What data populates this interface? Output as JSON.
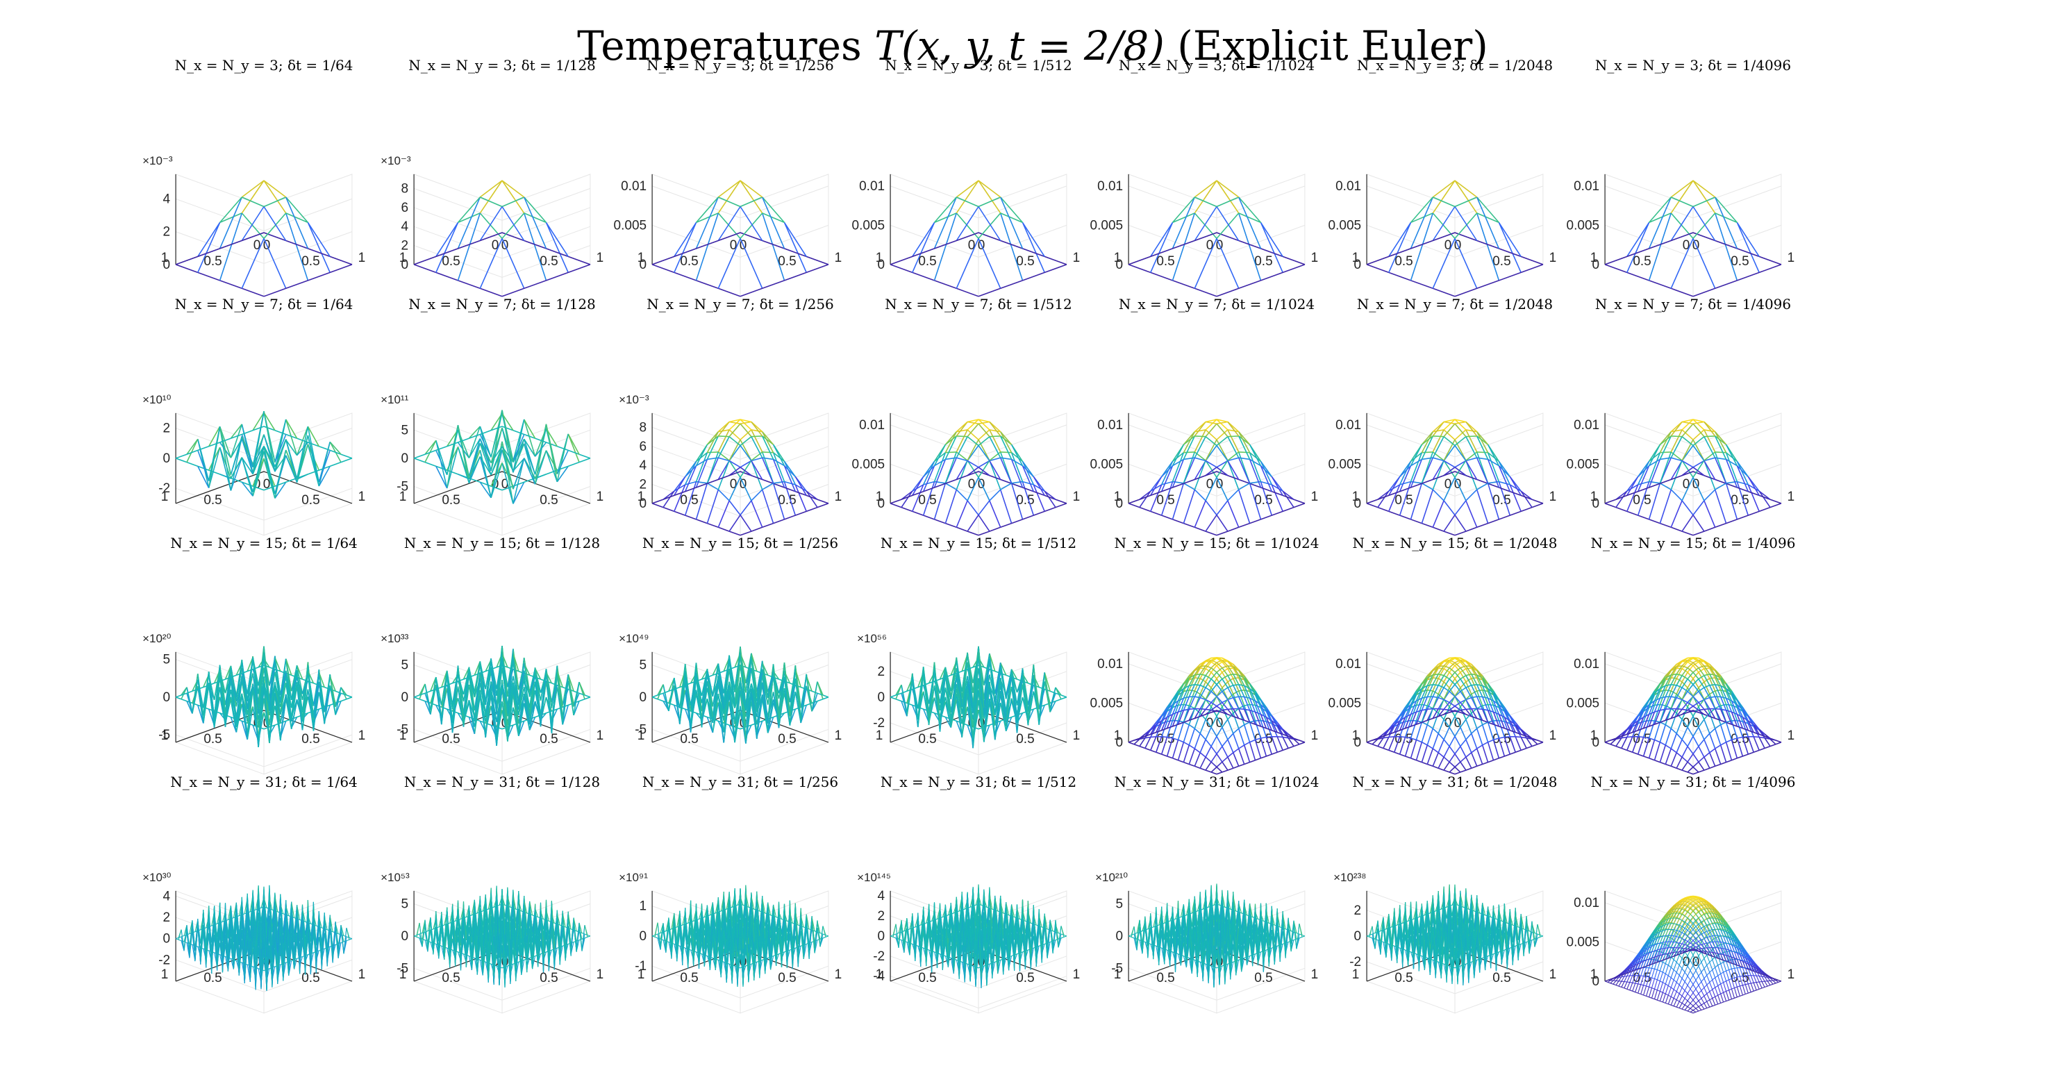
{
  "chart_data": {
    "type": "surface-grid",
    "title_prefix": "Temperatures ",
    "title_math": "T(x, y, t = 2/8)",
    "title_suffix": " (Explicit Euler)",
    "rows": 4,
    "cols": 7,
    "colormap": [
      "#3e26a8",
      "#4543e5",
      "#2f6ef8",
      "#1e97dc",
      "#16b8b5",
      "#5cc863",
      "#c2c02f",
      "#f9d824",
      "#f9fb14"
    ],
    "dt_labels": [
      "1/64",
      "1/128",
      "1/256",
      "1/512",
      "1/1024",
      "1/2048",
      "1/4096"
    ],
    "x_ticks": [
      "0",
      "0.5",
      "1"
    ],
    "y_ticks": [
      "0",
      "0.5",
      "1"
    ],
    "panels": [
      {
        "title": "N_x = N_y = 3; δt = 1/64",
        "N": 3,
        "state": "stable",
        "zlim": [
          0,
          0.0055
        ],
        "zticks": [
          "0",
          "2",
          "4"
        ],
        "exponent": "×10⁻³"
      },
      {
        "title": "N_x = N_y = 3; δt = 1/128",
        "N": 3,
        "state": "stable",
        "zlim": [
          0,
          0.0095
        ],
        "zticks": [
          "0",
          "2",
          "4",
          "6",
          "8"
        ],
        "exponent": "×10⁻³"
      },
      {
        "title": "N_x = N_y = 3; δt = 1/256",
        "N": 3,
        "state": "stable",
        "zlim": [
          0,
          0.0115
        ],
        "zticks": [
          "0",
          "0.005",
          "0.01"
        ],
        "exponent": ""
      },
      {
        "title": "N_x = N_y = 3; δt = 1/512",
        "N": 3,
        "state": "stable",
        "zlim": [
          0,
          0.0115
        ],
        "zticks": [
          "0",
          "0.005",
          "0.01"
        ],
        "exponent": ""
      },
      {
        "title": "N_x = N_y = 3; δt = 1/1024",
        "N": 3,
        "state": "stable",
        "zlim": [
          0,
          0.0115
        ],
        "zticks": [
          "0",
          "0.005",
          "0.01"
        ],
        "exponent": ""
      },
      {
        "title": "N_x = N_y = 3; δt = 1/2048",
        "N": 3,
        "state": "stable",
        "zlim": [
          0,
          0.0115
        ],
        "zticks": [
          "0",
          "0.005",
          "0.01"
        ],
        "exponent": ""
      },
      {
        "title": "N_x = N_y = 3; δt = 1/4096",
        "N": 3,
        "state": "stable",
        "zlim": [
          0,
          0.0115
        ],
        "zticks": [
          "0",
          "0.005",
          "0.01"
        ],
        "exponent": ""
      },
      {
        "title": "N_x = N_y = 7; δt = 1/64",
        "N": 7,
        "state": "unstable",
        "zlim": [
          -3,
          3
        ],
        "zticks": [
          "-2",
          "0",
          "2"
        ],
        "exponent": "×10¹⁰"
      },
      {
        "title": "N_x = N_y = 7; δt = 1/128",
        "N": 7,
        "state": "unstable",
        "zlim": [
          -8,
          8
        ],
        "zticks": [
          "-5",
          "0",
          "5"
        ],
        "exponent": "×10¹¹"
      },
      {
        "title": "N_x = N_y = 7; δt = 1/256",
        "N": 7,
        "state": "stable",
        "zlim": [
          0,
          0.0095
        ],
        "zticks": [
          "0",
          "2",
          "4",
          "6",
          "8"
        ],
        "exponent": "×10⁻³"
      },
      {
        "title": "N_x = N_y = 7; δt = 1/512",
        "N": 7,
        "state": "stable",
        "zlim": [
          0,
          0.0115
        ],
        "zticks": [
          "0",
          "0.005",
          "0.01"
        ],
        "exponent": ""
      },
      {
        "title": "N_x = N_y = 7; δt = 1/1024",
        "N": 7,
        "state": "stable",
        "zlim": [
          0,
          0.0115
        ],
        "zticks": [
          "0",
          "0.005",
          "0.01"
        ],
        "exponent": ""
      },
      {
        "title": "N_x = N_y = 7; δt = 1/2048",
        "N": 7,
        "state": "stable",
        "zlim": [
          0,
          0.0115
        ],
        "zticks": [
          "0",
          "0.005",
          "0.01"
        ],
        "exponent": ""
      },
      {
        "title": "N_x = N_y = 7; δt = 1/4096",
        "N": 7,
        "state": "stable",
        "zlim": [
          0,
          0.0115
        ],
        "zticks": [
          "0",
          "0.005",
          "0.01"
        ],
        "exponent": ""
      },
      {
        "title": "N_x = N_y = 15; δt = 1/64",
        "N": 15,
        "state": "unstable",
        "zlim": [
          -6,
          6
        ],
        "zticks": [
          "-5",
          "0",
          "5"
        ],
        "exponent": "×10²⁰"
      },
      {
        "title": "N_x = N_y = 15; δt = 1/128",
        "N": 15,
        "state": "unstable",
        "zlim": [
          -7,
          7
        ],
        "zticks": [
          "-5",
          "0",
          "5"
        ],
        "exponent": "×10³³"
      },
      {
        "title": "N_x = N_y = 15; δt = 1/256",
        "N": 15,
        "state": "unstable",
        "zlim": [
          -7,
          7
        ],
        "zticks": [
          "-5",
          "0",
          "5"
        ],
        "exponent": "×10⁴⁹"
      },
      {
        "title": "N_x = N_y = 15; δt = 1/512",
        "N": 15,
        "state": "unstable",
        "zlim": [
          -3.5,
          3.5
        ],
        "zticks": [
          "-2",
          "0",
          "2"
        ],
        "exponent": "×10⁵⁶"
      },
      {
        "title": "N_x = N_y = 15; δt = 1/1024",
        "N": 15,
        "state": "stable",
        "zlim": [
          0,
          0.0115
        ],
        "zticks": [
          "0",
          "0.005",
          "0.01"
        ],
        "exponent": ""
      },
      {
        "title": "N_x = N_y = 15; δt = 1/2048",
        "N": 15,
        "state": "stable",
        "zlim": [
          0,
          0.0115
        ],
        "zticks": [
          "0",
          "0.005",
          "0.01"
        ],
        "exponent": ""
      },
      {
        "title": "N_x = N_y = 15; δt = 1/4096",
        "N": 15,
        "state": "stable",
        "zlim": [
          0,
          0.0115
        ],
        "zticks": [
          "0",
          "0.005",
          "0.01"
        ],
        "exponent": ""
      },
      {
        "title": "N_x = N_y = 31; δt = 1/64",
        "N": 31,
        "state": "unstable",
        "zlim": [
          -4,
          4.5
        ],
        "zticks": [
          "-2",
          "0",
          "2",
          "4"
        ],
        "exponent": "×10³⁰"
      },
      {
        "title": "N_x = N_y = 31; δt = 1/128",
        "N": 31,
        "state": "unstable",
        "zlim": [
          -7,
          7
        ],
        "zticks": [
          "-5",
          "0",
          "5"
        ],
        "exponent": "×10⁵³"
      },
      {
        "title": "N_x = N_y = 31; δt = 1/256",
        "N": 31,
        "state": "unstable",
        "zlim": [
          -1.5,
          1.5
        ],
        "zticks": [
          "-1",
          "0",
          "1"
        ],
        "exponent": "×10⁹¹"
      },
      {
        "title": "N_x = N_y = 31; δt = 1/512",
        "N": 31,
        "state": "unstable",
        "zlim": [
          -4.5,
          4.5
        ],
        "zticks": [
          "-4",
          "-2",
          "0",
          "2",
          "4"
        ],
        "exponent": "×10¹⁴⁵"
      },
      {
        "title": "N_x = N_y = 31; δt = 1/1024",
        "N": 31,
        "state": "unstable",
        "zlim": [
          -7,
          7
        ],
        "zticks": [
          "-5",
          "0",
          "5"
        ],
        "exponent": "×10²¹⁰"
      },
      {
        "title": "N_x = N_y = 31; δt = 1/2048",
        "N": 31,
        "state": "unstable",
        "zlim": [
          -3.5,
          3.5
        ],
        "zticks": [
          "-2",
          "0",
          "2"
        ],
        "exponent": "×10²³⁸"
      },
      {
        "title": "N_x = N_y = 31; δt = 1/4096",
        "N": 31,
        "state": "stable",
        "zlim": [
          0,
          0.0115
        ],
        "zticks": [
          "0",
          "0.005",
          "0.01"
        ],
        "exponent": ""
      }
    ]
  }
}
